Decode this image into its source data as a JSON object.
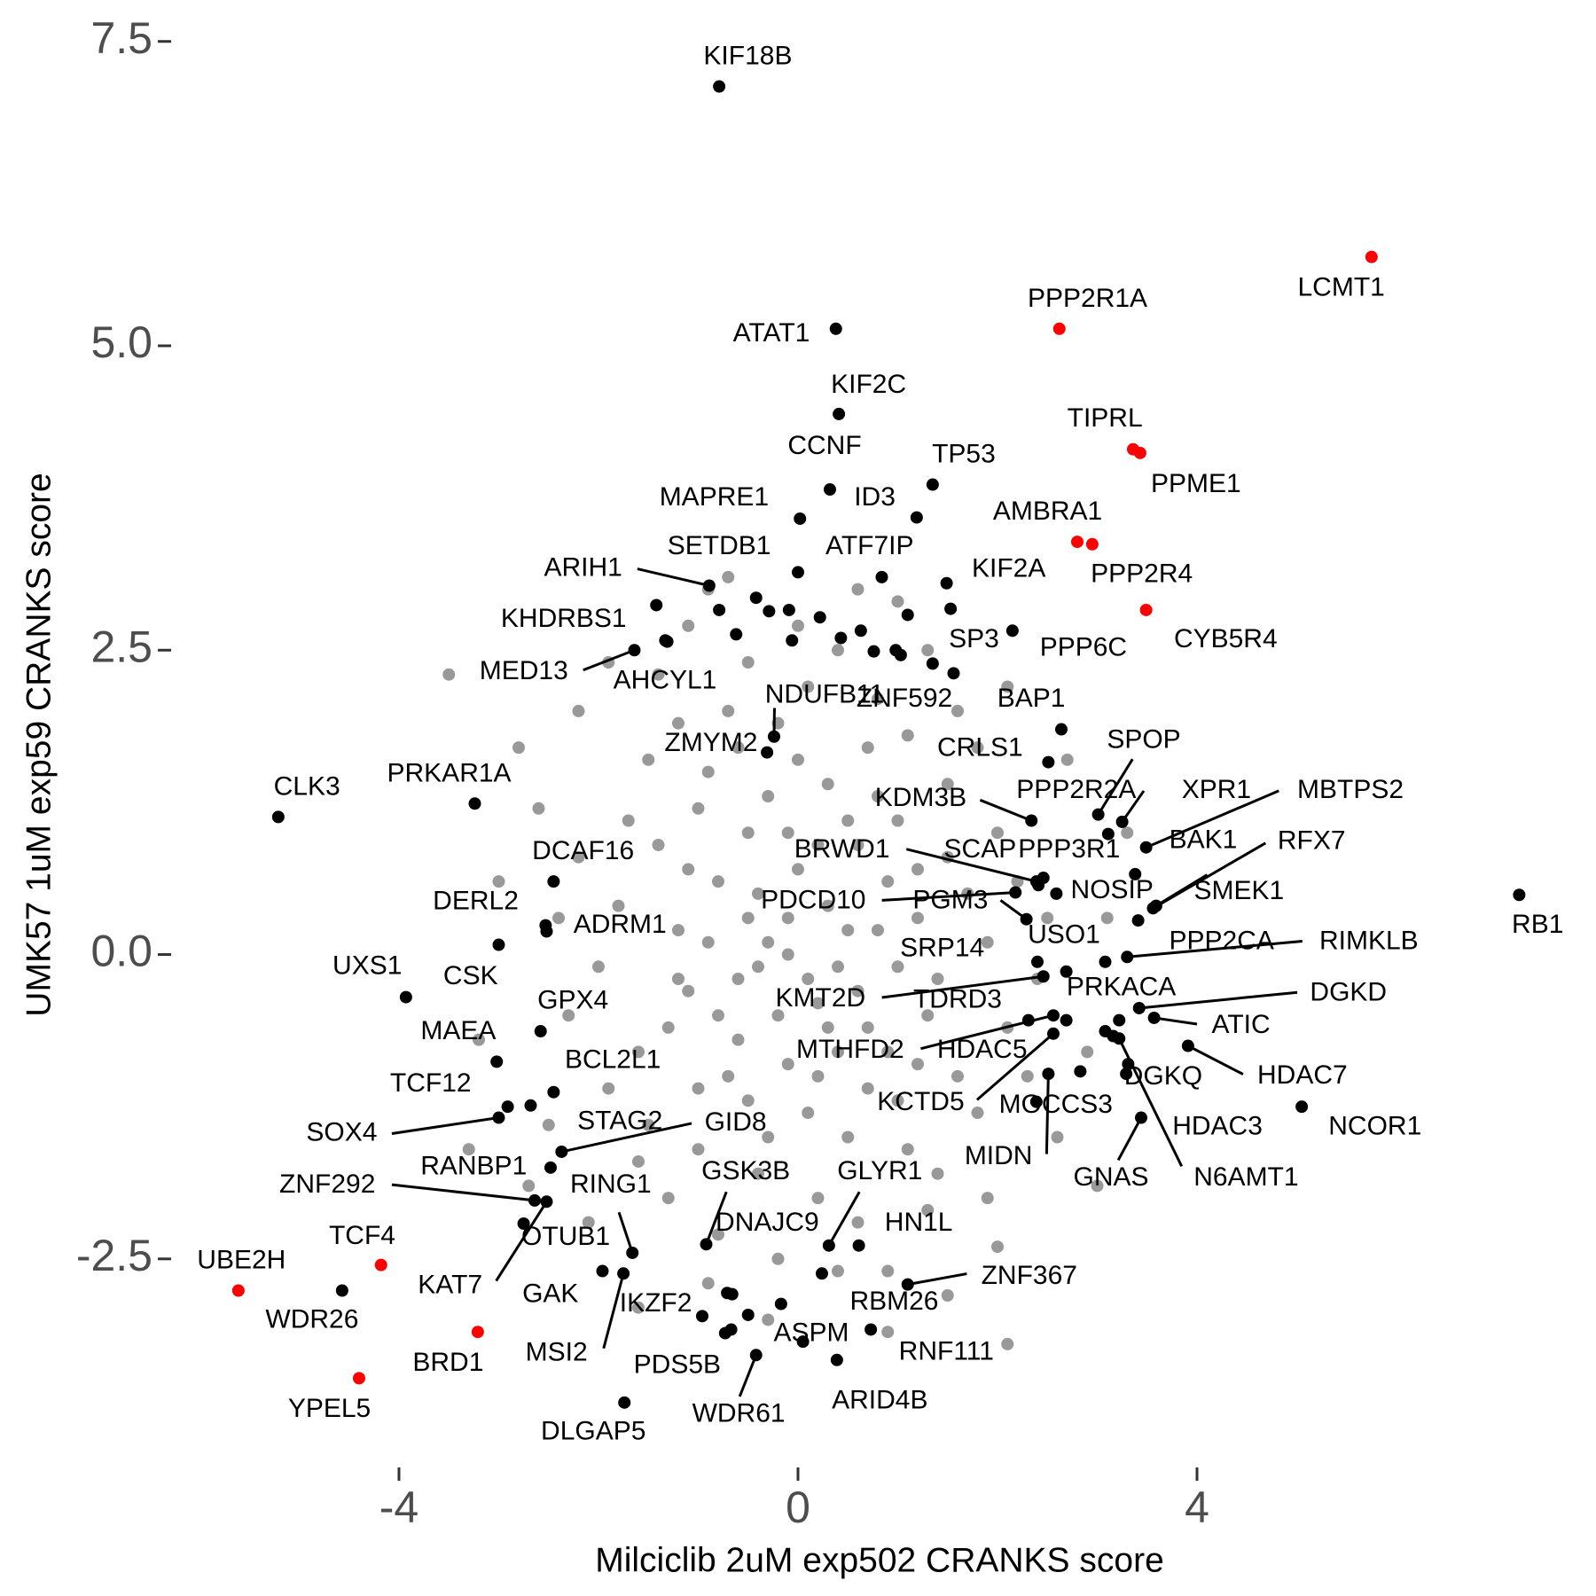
{
  "chart_data": {
    "type": "scatter",
    "x_label": "Milciclib 2uM exp502 CRANKS score",
    "y_label": "UMK57 1uM exp59 CRANKS score",
    "xlim": [
      -6.25,
      8
    ],
    "ylim": [
      -4.2,
      7.6
    ],
    "xticks": [
      -4,
      0,
      4
    ],
    "yticks": [
      -2.5,
      {
        "value": 0,
        "label": "0.0"
      },
      2.5,
      {
        "value": 5,
        "label": "5.0"
      },
      7.5
    ],
    "series": [
      {
        "color": "#999999",
        "x": [
          -0.3,
          0.2,
          -0.8,
          0.6,
          -1.1,
          0.9,
          -0.5,
          0.3,
          -1.4,
          1.2,
          -0.1,
          0.5,
          -0.9,
          -1.6,
          1.4,
          0.0,
          -0.6,
          0.8,
          -1.2,
          0.4,
          -0.2,
          0.7,
          -0.7,
          0.1,
          -1.0,
          1.0,
          1.5,
          -1.8,
          -1.5,
          1.6,
          0.2,
          -0.4,
          -1.0,
          1.1,
          0.6,
          -0.8,
          1.9,
          -2.0,
          2.1,
          -2.2,
          0.3,
          -0.4,
          -0.5,
          0.4,
          -0.2,
          0.1,
          -1.3,
          1.3,
          0.9,
          -0.9,
          -0.1,
          0.6,
          -0.6,
          0.7,
          -0.3,
          0.2,
          -1.1,
          1.2,
          -1.7,
          1.7,
          -1.9,
          1.8,
          -0.2,
          0.4,
          -1.3,
          1.3,
          0.8,
          -1.2,
          0.0,
          -0.5,
          0.4,
          2.0,
          -2.3,
          2.3,
          2.2,
          -2.4,
          1.0,
          -0.7,
          0.1,
          -0.1,
          1.5,
          -1.5,
          1.4,
          -1.6,
          2.4,
          -2.5,
          0.9,
          -0.9,
          2.5,
          -2.6,
          0.5,
          -0.8,
          0.3,
          -0.4,
          0.8,
          -0.6,
          1.1,
          -1.4,
          1.6,
          0.0,
          2.6,
          -2.7,
          2.7,
          -2.8,
          1.9,
          -1.9,
          0.6,
          -0.3,
          2.9,
          -3.0,
          -0.1,
          0.2,
          -1.0,
          1.0,
          0.5,
          -0.5,
          0.7,
          -0.3,
          1.2,
          -1.2,
          1.8,
          -2.1,
          2.0,
          -1.1,
          1.3,
          3.1,
          -3.2,
          2.1,
          -2.2,
          0.9,
          -0.7,
          3.0,
          -3.3,
          1.5,
          -1.6,
          -0.9,
          1.0,
          -3.5,
          3.3,
          2.1
        ],
        "y": [
          0.1,
          -0.4,
          0.6,
          0.9,
          -0.3,
          -0.8,
          -1.2,
          1.4,
          0.9,
          0.3,
          -0.9,
          -1.5,
          1.5,
          -0.8,
          -0.2,
          0.7,
          -0.2,
          0.2,
          0.2,
          -0.1,
          1.9,
          1.7,
          2.0,
          2.2,
          1.2,
          1.1,
          0.8,
          0.4,
          -1.4,
          -1.0,
          -2.0,
          -1.8,
          -1.6,
          -1.6,
          -2.2,
          -2.3,
          0.1,
          -0.1,
          -0.6,
          0.8,
          0.4,
          0.5,
          1.0,
          -0.8,
          -0.5,
          -1.3,
          -0.6,
          -0.5,
          0.6,
          0.1,
          0.3,
          -0.3,
          -0.7,
          -1.1,
          1.3,
          0.9,
          0.7,
          0.7,
          1.1,
          0.5,
          -1.1,
          -1.3,
          -2.5,
          -2.6,
          -2.0,
          -2.1,
          2.1,
          1.9,
          1.6,
          2.4,
          2.5,
          1.0,
          -0.5,
          -1.0,
          0.6,
          0.3,
          -0.1,
          -1.0,
          -0.2,
          0.0,
          1.4,
          1.6,
          -1.8,
          -1.7,
          -0.2,
          -1.4,
          -2.6,
          -2.7,
          0.3,
          1.2,
          0.2,
          -0.5,
          -0.6,
          -0.1,
          1.3,
          1.7,
          1.8,
          2.3,
          2.0,
          2.7,
          -1.5,
          -1.9,
          1.6,
          1.7,
          -2.0,
          2.4,
          3.0,
          -3.0,
          -0.8,
          0.6,
          1.0,
          -1.0,
          -1.1,
          -1.2,
          1.1,
          0.3,
          -0.6,
          -1.5,
          -0.9,
          -0.2,
          1.7,
          -2.2,
          -2.4,
          2.7,
          2.5,
          0.3,
          -0.7,
          2.2,
          2.0,
          -3.1,
          3.1,
          -1.9,
          -1.6,
          -2.8,
          -2.9,
          3.0,
          2.9,
          2.3,
          1.0,
          -3.2
        ]
      },
      {
        "color": "#000000",
        "x": [
          -0.79,
          -0.62,
          -0.42,
          -0.29,
          -0.09,
          -0.06,
          0.22,
          0.43,
          0.63,
          0.76,
          1.1,
          1.35,
          1.56,
          -1.33,
          3.22,
          3.16,
          2.83,
          -0.66,
          -0.17,
          -0.5,
          -0.67,
          3.08,
          0.98
        ],
        "y": [
          2.83,
          2.63,
          2.93,
          2.82,
          2.83,
          2.58,
          2.77,
          2.6,
          2.66,
          2.49,
          2.79,
          2.39,
          2.31,
          2.58,
          -0.54,
          -0.67,
          -0.96,
          -2.79,
          -2.87,
          -2.96,
          -3.08,
          -0.63,
          2.5
        ]
      }
    ],
    "points": [
      {
        "label": "KIF18B",
        "x": -0.79,
        "y": 7.13,
        "color": "#000000"
      },
      {
        "label": "LCMT1",
        "x": 5.75,
        "y": 5.73,
        "color": "#ff0000"
      },
      {
        "label": "PPP2R1A",
        "x": 2.62,
        "y": 5.14,
        "color": "#ff0000"
      },
      {
        "label": "ATAT1",
        "x": 0.38,
        "y": 5.14,
        "color": "#000000"
      },
      {
        "label": "KIF2C",
        "x": 0.41,
        "y": 4.44,
        "color": "#000000"
      },
      {
        "label": "TIPRL",
        "x": 3.36,
        "y": 4.15,
        "color": "#ff0000"
      },
      {
        "label": "PPME1",
        "x": 3.43,
        "y": 4.12,
        "color": "#ff0000"
      },
      {
        "label": "CCNF",
        "x": 0.32,
        "y": 3.82,
        "color": "#000000"
      },
      {
        "label": "TP53",
        "x": 1.35,
        "y": 3.86,
        "color": "#000000"
      },
      {
        "label": "MAPRE1",
        "x": 0.02,
        "y": 3.58,
        "color": "#000000"
      },
      {
        "label": "ID3",
        "x": 1.19,
        "y": 3.59,
        "color": "#000000"
      },
      {
        "label": "AMBRA1",
        "x": 2.8,
        "y": 3.39,
        "color": "#ff0000"
      },
      {
        "label": "PPP2R4",
        "x": 2.95,
        "y": 3.37,
        "color": "#ff0000"
      },
      {
        "label": "SETDB1",
        "x": 0.0,
        "y": 3.14,
        "color": "#000000"
      },
      {
        "label": "ATF7IP",
        "x": 0.84,
        "y": 3.1,
        "color": "#000000"
      },
      {
        "label": "KIF2A",
        "x": 1.49,
        "y": 3.05,
        "color": "#000000"
      },
      {
        "label": "ARIH1",
        "x": -0.89,
        "y": 3.03,
        "color": "#000000"
      },
      {
        "label": "CYB5R4",
        "x": 3.49,
        "y": 2.83,
        "color": "#ff0000"
      },
      {
        "label": "KHDRBS1",
        "x": -1.42,
        "y": 2.87,
        "color": "#000000"
      },
      {
        "label": "SP3",
        "x": 1.53,
        "y": 2.84,
        "color": "#000000"
      },
      {
        "label": "PPP6C",
        "x": 2.15,
        "y": 2.66,
        "color": "#000000"
      },
      {
        "label": "MED13",
        "x": -1.64,
        "y": 2.5,
        "color": "#000000"
      },
      {
        "label": "AHCYL1",
        "x": -1.31,
        "y": 2.57,
        "color": "#000000"
      },
      {
        "label": "NDUFB11",
        "x": -0.24,
        "y": 1.79,
        "color": "#000000"
      },
      {
        "label": "ZNF592",
        "x": 1.03,
        "y": 2.46,
        "color": "#000000"
      },
      {
        "label": "ZMYM2",
        "x": -0.31,
        "y": 1.66,
        "color": "#000000"
      },
      {
        "label": "BAP1",
        "x": 2.64,
        "y": 1.85,
        "color": "#000000"
      },
      {
        "label": "CRLS1",
        "x": 2.51,
        "y": 1.58,
        "color": "#000000"
      },
      {
        "label": "SPOP",
        "x": 3.01,
        "y": 1.15,
        "color": "#000000"
      },
      {
        "label": "PRKAR1A",
        "x": -3.24,
        "y": 1.24,
        "color": "#000000"
      },
      {
        "label": "CLK3",
        "x": -5.21,
        "y": 1.13,
        "color": "#000000"
      },
      {
        "label": "KDM3B",
        "x": 2.34,
        "y": 1.1,
        "color": "#000000"
      },
      {
        "label": "PPP2R2A",
        "x": 3.11,
        "y": 0.99,
        "color": "#000000"
      },
      {
        "label": "XPR1",
        "x": 3.25,
        "y": 1.09,
        "color": "#000000"
      },
      {
        "label": "MBTPS2",
        "x": 3.49,
        "y": 0.88,
        "color": "#000000"
      },
      {
        "label": "BAK1",
        "x": 3.38,
        "y": 0.66,
        "color": "#000000"
      },
      {
        "label": "RFX7",
        "x": 3.56,
        "y": 0.38,
        "color": "#000000"
      },
      {
        "label": "DCAF16",
        "x": -2.45,
        "y": 0.6,
        "color": "#000000"
      },
      {
        "label": "BRWD1",
        "x": 2.39,
        "y": 0.6,
        "color": "#000000"
      },
      {
        "label": "SCAP",
        "x": 2.46,
        "y": 0.63,
        "color": "#000000"
      },
      {
        "label": "PPP3R1",
        "x": 2.59,
        "y": 0.5,
        "color": "#000000"
      },
      {
        "label": "NOSIP",
        "x": 2.41,
        "y": 0.57,
        "color": "#000000"
      },
      {
        "label": "SMEK1",
        "x": 3.59,
        "y": 0.4,
        "color": "#000000"
      },
      {
        "label": "PDCD10",
        "x": 2.18,
        "y": 0.51,
        "color": "#000000"
      },
      {
        "label": "PGM3",
        "x": 2.29,
        "y": 0.29,
        "color": "#000000"
      },
      {
        "label": "DERL2",
        "x": -2.53,
        "y": 0.24,
        "color": "#000000"
      },
      {
        "label": "ADRM1",
        "x": -2.52,
        "y": 0.19,
        "color": "#000000"
      },
      {
        "label": "USO1",
        "x": 2.4,
        "y": -0.06,
        "color": "#000000"
      },
      {
        "label": "PPP2CA",
        "x": 3.41,
        "y": 0.28,
        "color": "#000000"
      },
      {
        "label": "RIMKLB",
        "x": 3.3,
        "y": -0.02,
        "color": "#000000"
      },
      {
        "label": "RB1",
        "x": 7.23,
        "y": 0.49,
        "color": "#000000"
      },
      {
        "label": "SRP14",
        "x": 2.69,
        "y": -0.14,
        "color": "#000000"
      },
      {
        "label": "UXS1",
        "x": -3.93,
        "y": -0.35,
        "color": "#000000"
      },
      {
        "label": "CSK",
        "x": -3.0,
        "y": 0.08,
        "color": "#000000"
      },
      {
        "label": "PRKACA",
        "x": 3.08,
        "y": -0.06,
        "color": "#000000"
      },
      {
        "label": "DGKD",
        "x": 3.42,
        "y": -0.44,
        "color": "#000000"
      },
      {
        "label": "KMT2D",
        "x": 2.46,
        "y": -0.18,
        "color": "#000000"
      },
      {
        "label": "TDRD3",
        "x": 2.31,
        "y": -0.54,
        "color": "#000000"
      },
      {
        "label": "GPX4",
        "x": -2.58,
        "y": -0.63,
        "color": "#000000"
      },
      {
        "label": "MAEA",
        "x": -3.02,
        "y": -0.88,
        "color": "#000000"
      },
      {
        "label": "ATIC",
        "x": 3.57,
        "y": -0.52,
        "color": "#000000"
      },
      {
        "label": "MTHFD2",
        "x": 2.56,
        "y": -0.5,
        "color": "#000000"
      },
      {
        "label": "HDAC5",
        "x": 2.69,
        "y": -0.54,
        "color": "#000000"
      },
      {
        "label": "BCL2L1",
        "x": -2.45,
        "y": -1.13,
        "color": "#000000"
      },
      {
        "label": "HDAC7",
        "x": 3.91,
        "y": -0.75,
        "color": "#000000"
      },
      {
        "label": "TCF12",
        "x": -2.91,
        "y": -1.25,
        "color": "#000000"
      },
      {
        "label": "DGKQ",
        "x": 3.29,
        "y": -0.98,
        "color": "#000000"
      },
      {
        "label": "KCTD5",
        "x": 2.56,
        "y": -0.65,
        "color": "#000000"
      },
      {
        "label": "MOCCS3",
        "x": 2.39,
        "y": -1.21,
        "color": "#000000"
      },
      {
        "label": "NCOR1",
        "x": 5.05,
        "y": -1.25,
        "color": "#000000"
      },
      {
        "label": "SOX4",
        "x": -3.0,
        "y": -1.34,
        "color": "#000000"
      },
      {
        "label": "STAG2",
        "x": -2.68,
        "y": -1.24,
        "color": "#000000"
      },
      {
        "label": "GID8",
        "x": -2.37,
        "y": -1.62,
        "color": "#000000"
      },
      {
        "label": "HDAC3",
        "x": 3.31,
        "y": -0.9,
        "color": "#000000"
      },
      {
        "label": "MIDN",
        "x": 2.51,
        "y": -0.98,
        "color": "#000000"
      },
      {
        "label": "GNAS",
        "x": 3.44,
        "y": -1.34,
        "color": "#000000"
      },
      {
        "label": "N6AMT1",
        "x": 3.22,
        "y": -0.69,
        "color": "#000000"
      },
      {
        "label": "RANBP1",
        "x": -2.48,
        "y": -1.75,
        "color": "#000000"
      },
      {
        "label": "ZNF292",
        "x": -2.64,
        "y": -2.02,
        "color": "#000000"
      },
      {
        "label": "RING1",
        "x": -1.66,
        "y": -2.45,
        "color": "#000000"
      },
      {
        "label": "GSK3B",
        "x": -0.92,
        "y": -2.38,
        "color": "#000000"
      },
      {
        "label": "GLYR1",
        "x": 0.31,
        "y": -2.39,
        "color": "#000000"
      },
      {
        "label": "DNAJC9",
        "x": -0.71,
        "y": -2.78,
        "color": "#000000"
      },
      {
        "label": "OTUB1",
        "x": -2.75,
        "y": -2.21,
        "color": "#000000"
      },
      {
        "label": "HN1L",
        "x": 0.61,
        "y": -2.39,
        "color": "#000000"
      },
      {
        "label": "KAT7",
        "x": -2.52,
        "y": -2.03,
        "color": "#000000"
      },
      {
        "label": "TCF4",
        "x": -4.18,
        "y": -2.55,
        "color": "#ff0000"
      },
      {
        "label": "UBE2H",
        "x": -5.61,
        "y": -2.76,
        "color": "#ff0000"
      },
      {
        "label": "WDR26",
        "x": -4.57,
        "y": -2.76,
        "color": "#000000"
      },
      {
        "label": "GAK",
        "x": -1.96,
        "y": -2.6,
        "color": "#000000"
      },
      {
        "label": "ZNF367",
        "x": 1.1,
        "y": -2.71,
        "color": "#000000"
      },
      {
        "label": "RBM26",
        "x": 0.24,
        "y": -2.62,
        "color": "#000000"
      },
      {
        "label": "IKZF2",
        "x": -0.96,
        "y": -2.97,
        "color": "#000000"
      },
      {
        "label": "MSI2",
        "x": -1.75,
        "y": -2.62,
        "color": "#000000"
      },
      {
        "label": "BRD1",
        "x": -3.21,
        "y": -3.1,
        "color": "#ff0000"
      },
      {
        "label": "ASPM",
        "x": 0.05,
        "y": -3.18,
        "color": "#000000"
      },
      {
        "label": "RNF111",
        "x": 0.73,
        "y": -3.08,
        "color": "#000000"
      },
      {
        "label": "YPEL5",
        "x": -4.4,
        "y": -3.48,
        "color": "#ff0000"
      },
      {
        "label": "PDS5B",
        "x": -0.73,
        "y": -3.11,
        "color": "#000000"
      },
      {
        "label": "ARID4B",
        "x": 0.39,
        "y": -3.33,
        "color": "#000000"
      },
      {
        "label": "WDR61",
        "x": -0.42,
        "y": -3.29,
        "color": "#000000"
      },
      {
        "label": "DLGAP5",
        "x": -1.74,
        "y": -3.68,
        "color": "#000000"
      }
    ]
  }
}
